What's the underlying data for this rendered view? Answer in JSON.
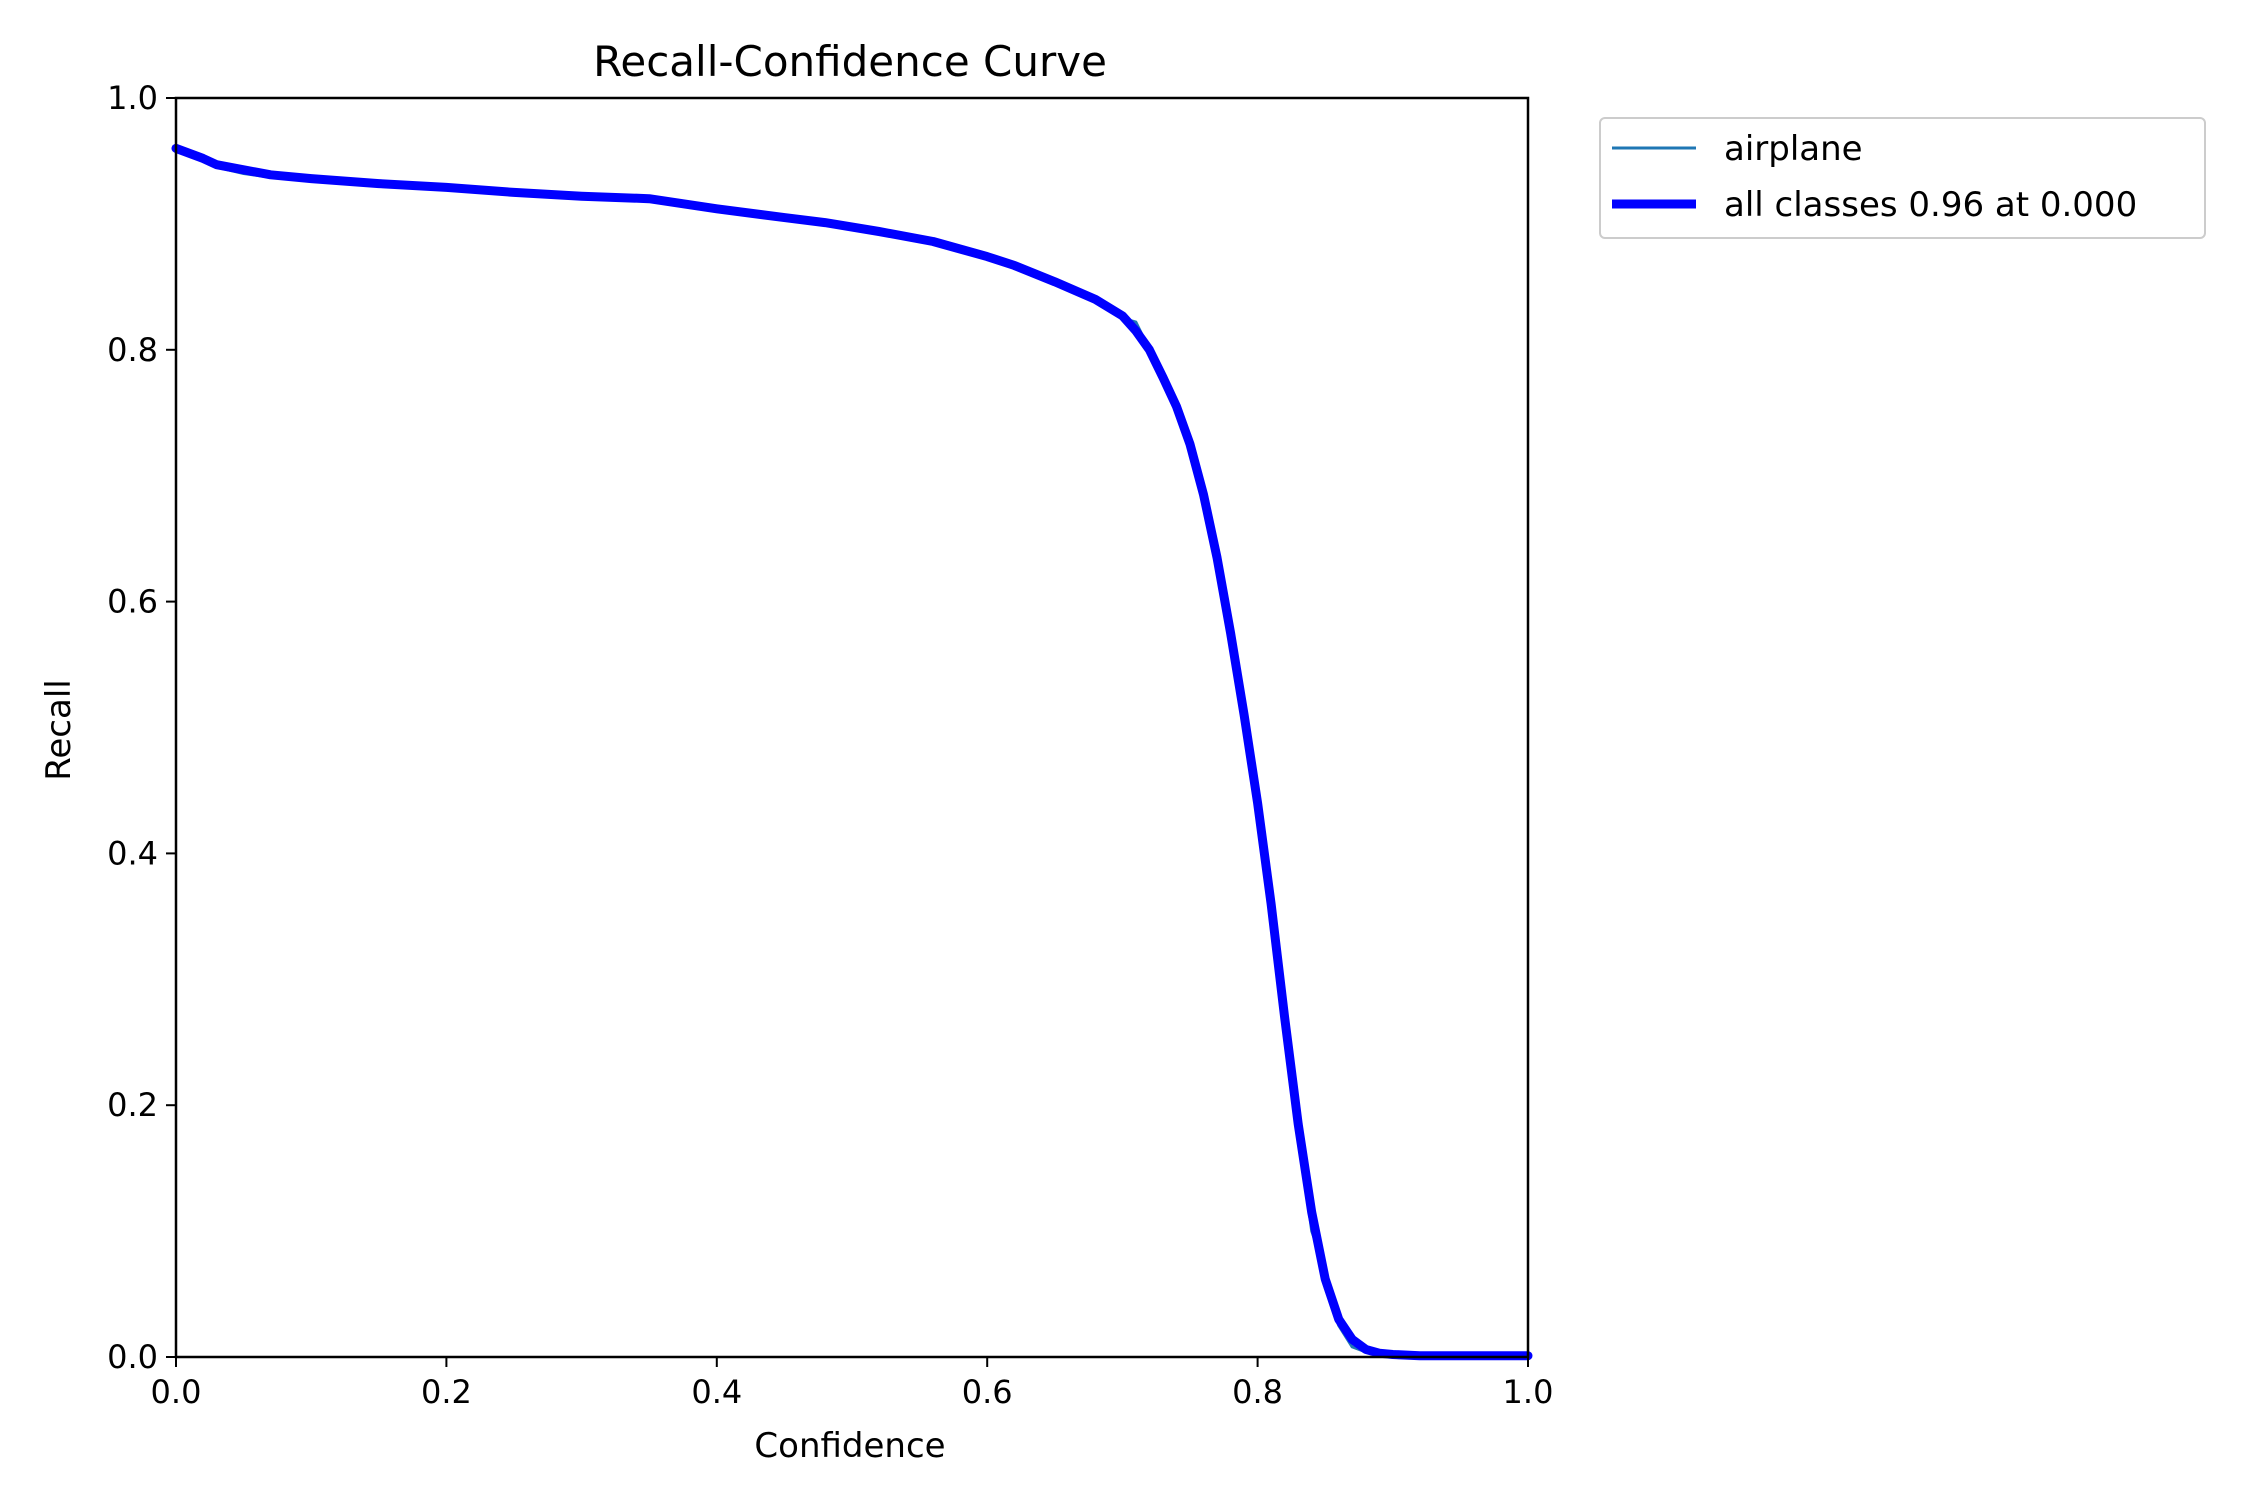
{
  "chart_data": {
    "type": "line",
    "title": "Recall-Confidence Curve",
    "xlabel": "Confidence",
    "ylabel": "Recall",
    "xlim": [
      0.0,
      1.0
    ],
    "ylim": [
      0.0,
      1.0
    ],
    "xticks": [
      "0.0",
      "0.2",
      "0.4",
      "0.6",
      "0.8",
      "1.0"
    ],
    "yticks": [
      "0.0",
      "0.2",
      "0.4",
      "0.6",
      "0.8",
      "1.0"
    ],
    "grid": false,
    "legend_position": "outside-top-right",
    "series": [
      {
        "name": "airplane",
        "color": "#1f77b4",
        "line": "thin",
        "x": [
          0.0,
          0.01,
          0.02,
          0.03,
          0.05,
          0.07,
          0.1,
          0.15,
          0.2,
          0.25,
          0.3,
          0.35,
          0.4,
          0.45,
          0.48,
          0.52,
          0.56,
          0.6,
          0.62,
          0.65,
          0.68,
          0.7,
          0.71,
          0.72,
          0.73,
          0.74,
          0.75,
          0.76,
          0.77,
          0.78,
          0.79,
          0.8,
          0.81,
          0.82,
          0.83,
          0.84,
          0.845,
          0.85,
          0.86,
          0.87,
          0.88,
          0.89,
          0.9,
          0.92,
          0.95,
          1.0
        ],
        "y": [
          0.96,
          0.955,
          0.95,
          0.945,
          0.94,
          0.937,
          0.934,
          0.93,
          0.928,
          0.924,
          0.921,
          0.919,
          0.91,
          0.903,
          0.9,
          0.893,
          0.885,
          0.873,
          0.866,
          0.853,
          0.838,
          0.825,
          0.822,
          0.8,
          0.775,
          0.752,
          0.72,
          0.68,
          0.63,
          0.57,
          0.51,
          0.44,
          0.36,
          0.27,
          0.18,
          0.1,
          0.085,
          0.055,
          0.025,
          0.008,
          0.004,
          0.002,
          0.001,
          0.001,
          0.001,
          0.001
        ]
      },
      {
        "name": "all classes 0.96 at 0.000",
        "color": "#0000ff",
        "line": "thick",
        "x": [
          0.0,
          0.01,
          0.02,
          0.03,
          0.05,
          0.07,
          0.1,
          0.15,
          0.2,
          0.25,
          0.3,
          0.35,
          0.4,
          0.45,
          0.48,
          0.52,
          0.56,
          0.6,
          0.62,
          0.65,
          0.68,
          0.7,
          0.71,
          0.72,
          0.73,
          0.74,
          0.75,
          0.76,
          0.77,
          0.78,
          0.79,
          0.8,
          0.81,
          0.82,
          0.83,
          0.84,
          0.85,
          0.86,
          0.87,
          0.88,
          0.89,
          0.9,
          0.92,
          0.95,
          1.0
        ],
        "y": [
          0.96,
          0.956,
          0.952,
          0.947,
          0.943,
          0.939,
          0.936,
          0.932,
          0.929,
          0.925,
          0.922,
          0.92,
          0.912,
          0.905,
          0.901,
          0.894,
          0.886,
          0.874,
          0.867,
          0.854,
          0.84,
          0.827,
          0.815,
          0.8,
          0.778,
          0.755,
          0.725,
          0.685,
          0.635,
          0.575,
          0.51,
          0.44,
          0.36,
          0.27,
          0.185,
          0.115,
          0.062,
          0.03,
          0.014,
          0.006,
          0.003,
          0.002,
          0.001,
          0.001,
          0.001
        ]
      }
    ]
  }
}
